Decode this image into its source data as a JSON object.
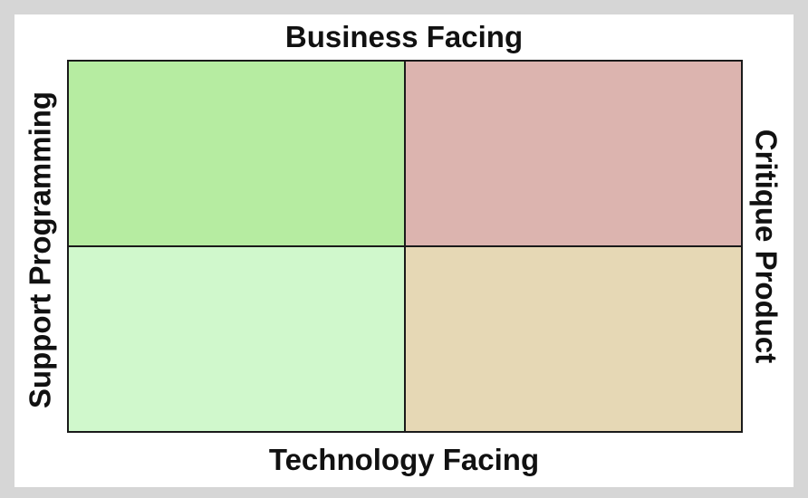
{
  "labels": {
    "top": "Business Facing",
    "bottom": "Technology Facing",
    "left": "Support Programming",
    "right": "Critique Product"
  },
  "quadrants": {
    "top_left": {
      "color": "#b6eca1"
    },
    "top_right": {
      "color": "#dcb4af"
    },
    "bottom_left": {
      "color": "#d0f8cc"
    },
    "bottom_right": {
      "color": "#e6d8b5"
    }
  }
}
